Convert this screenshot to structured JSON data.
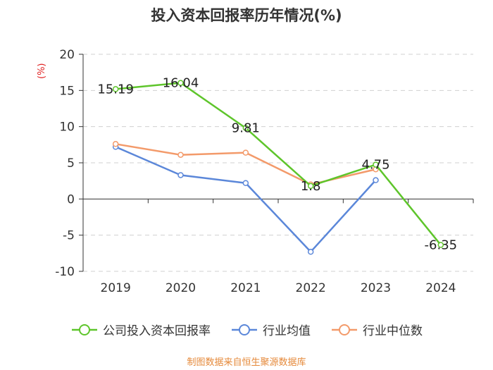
{
  "chart_data": {
    "type": "line",
    "title": "投入资本回报率历年情况(%)",
    "ylabel": "(%)",
    "xlabel": "",
    "categories": [
      "2019",
      "2020",
      "2021",
      "2022",
      "2023",
      "2024"
    ],
    "ylim": [
      -10,
      20
    ],
    "yticks": [
      20,
      15,
      10,
      5,
      0,
      -5,
      -10
    ],
    "grid": true,
    "legend_position": "bottom",
    "series": [
      {
        "name": "公司投入资本回报率",
        "color": "#5ec52b",
        "values": [
          15.19,
          16.04,
          9.81,
          1.8,
          4.75,
          -6.35
        ],
        "labels": [
          "15.19",
          "16.04",
          "9.81",
          "1.8",
          "4.75",
          "-6.35"
        ]
      },
      {
        "name": "行业均值",
        "color": "#5b87d9",
        "values": [
          7.2,
          3.3,
          2.2,
          -7.3,
          2.6,
          null
        ]
      },
      {
        "name": "行业中位数",
        "color": "#f39a6a",
        "values": [
          7.6,
          6.1,
          6.4,
          2.0,
          4.1,
          null
        ]
      }
    ]
  },
  "footer": {
    "source": "制图数据来自恒生聚源数据库"
  }
}
